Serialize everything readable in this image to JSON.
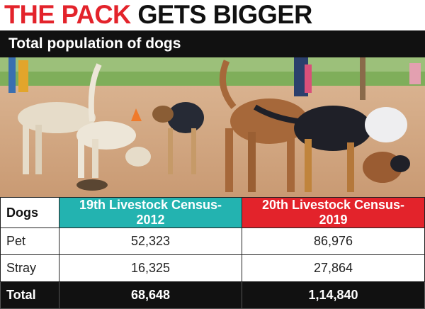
{
  "header": {
    "title_highlight": "THE PACK",
    "title_rest": "GETS BIGGER",
    "subtitle": "Total population of dogs"
  },
  "table": {
    "header": [
      "Dogs",
      "19th Livestock Census-2012",
      "20th Livestock Census-2019"
    ],
    "rows": [
      [
        "Pet",
        "52,323",
        "86,976"
      ],
      [
        "Stray",
        "16,325",
        "27,864"
      ],
      [
        "Total",
        "68,648",
        "1,14,840"
      ]
    ]
  }
}
